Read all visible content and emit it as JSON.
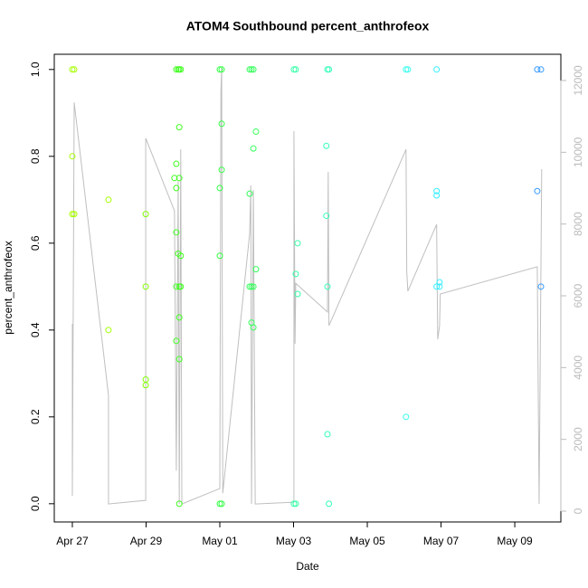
{
  "chart_data": {
    "type": "scatter",
    "title": "ATOM4 Southbound percent_anthrofeox",
    "xlabel": "Date",
    "ylabel": "percent_anthrofeox",
    "xlim": [
      26.51,
      40.25
    ],
    "xticks": [
      {
        "value": 27,
        "label": "Apr 27"
      },
      {
        "value": 29,
        "label": "Apr 29"
      },
      {
        "value": 31,
        "label": "May 01"
      },
      {
        "value": 33,
        "label": "May 03"
      },
      {
        "value": 35,
        "label": "May 05"
      },
      {
        "value": 37,
        "label": "May 07"
      },
      {
        "value": 39,
        "label": "May 09"
      }
    ],
    "ylim": [
      -0.042,
      1.035
    ],
    "yticks": [
      {
        "value": 0,
        "label": "0.0"
      },
      0.2,
      0.4,
      0.6,
      0.8,
      {
        "value": 1,
        "label": "1.0"
      }
    ],
    "y2lim": [
      -302,
      12731
    ],
    "y2ticks": [
      0,
      2000,
      4000,
      6000,
      8000,
      10000,
      12000
    ],
    "y2color": "#bbbbbb",
    "series": [
      {
        "type": "line",
        "axis": "y2",
        "color": "#bfbfbf",
        "x": [
          27.0,
          27.0,
          27.05,
          27.98,
          27.98,
          28.99,
          28.99,
          29.77,
          29.82,
          29.87,
          29.9,
          29.94,
          29.97,
          31.0,
          31.03,
          31.05,
          31.08,
          31.81,
          31.84,
          31.86,
          31.91,
          31.96,
          33.01,
          33.01,
          33.04,
          33.06,
          33.11,
          33.92,
          33.94,
          33.96,
          36.05,
          36.07,
          36.1,
          36.88,
          36.91,
          36.96,
          36.98,
          39.61,
          39.66,
          39.73
        ],
        "values": [
          5220,
          430,
          11390,
          3230,
          200,
          300,
          10390,
          8370,
          1130,
          9200,
          200,
          10080,
          200,
          630,
          11720,
          12350,
          500,
          7740,
          9080,
          200,
          8950,
          200,
          250,
          10590,
          4660,
          6350,
          6300,
          5550,
          9450,
          5170,
          10080,
          6680,
          6130,
          7990,
          4790,
          5170,
          6050,
          6810,
          200,
          9530
        ]
      },
      {
        "color": "#a6ff00",
        "x": [
          27.0,
          27.05,
          27.0,
          27.0,
          27.05,
          27.98,
          27.98
        ],
        "values": [
          1.0,
          1.0,
          0.8,
          0.667,
          0.667,
          0.7,
          0.4
        ]
      },
      {
        "color": "#80ff00",
        "x": [
          28.99,
          28.99,
          28.99,
          28.99
        ],
        "values": [
          0.667,
          0.5,
          0.286,
          0.273
        ]
      },
      {
        "color": "#40ff20",
        "x": [
          29.77,
          29.82,
          29.82,
          29.82,
          29.82,
          29.82,
          29.82,
          29.87,
          29.87,
          29.9,
          29.9,
          29.9,
          29.9,
          29.9,
          29.9,
          29.9,
          29.94,
          29.94,
          29.94
        ],
        "values": [
          0.75,
          0.783,
          0.727,
          0.625,
          0.5,
          0.375,
          1.0,
          1.0,
          0.576,
          0.867,
          0.75,
          0.5,
          0.429,
          0.333,
          0.0,
          1.0,
          1.0,
          0.571,
          0.5
        ]
      },
      {
        "color": "#33ff44",
        "x": [
          31.0,
          31.0,
          31.0,
          31.0,
          31.05,
          31.05,
          31.05,
          31.05
        ],
        "values": [
          1.0,
          0.727,
          0.571,
          0.0,
          0.875,
          0.769,
          1.0,
          0.0
        ]
      },
      {
        "color": "#33ff5a",
        "x": [
          31.81,
          31.81,
          31.81,
          31.86,
          31.86,
          31.86,
          31.91,
          31.91,
          31.91,
          31.91,
          31.98,
          31.98
        ],
        "values": [
          1.0,
          0.714,
          0.5,
          0.5,
          0.417,
          1.0,
          0.818,
          0.406,
          0.5,
          1.0,
          0.857,
          0.54
        ]
      },
      {
        "color": "#33ffa8",
        "x": [
          33.01,
          33.01,
          33.06,
          33.06,
          33.06,
          33.11,
          33.11
        ],
        "values": [
          1.0,
          0.0,
          0.529,
          0.0,
          1.0,
          0.6,
          0.483
        ]
      },
      {
        "color": "#33ffbb",
        "x": [
          33.89,
          33.89,
          33.92,
          33.92,
          33.92,
          33.96,
          33.96
        ],
        "values": [
          0.824,
          0.663,
          1.0,
          0.5,
          0.16,
          0.0,
          1.0
        ]
      },
      {
        "color": "#33ffee",
        "x": [
          36.05,
          36.05,
          36.1
        ],
        "values": [
          1.0,
          0.2,
          1.0
        ]
      },
      {
        "color": "#33eeff",
        "x": [
          36.88,
          36.88,
          36.88,
          36.88,
          36.96,
          36.96
        ],
        "values": [
          0.72,
          0.71,
          1.0,
          0.5,
          0.5,
          0.51
        ]
      },
      {
        "color": "#3399ff",
        "x": [
          39.61,
          39.61,
          39.71,
          39.71
        ],
        "values": [
          1.0,
          0.72,
          1.0,
          0.5
        ]
      }
    ]
  }
}
